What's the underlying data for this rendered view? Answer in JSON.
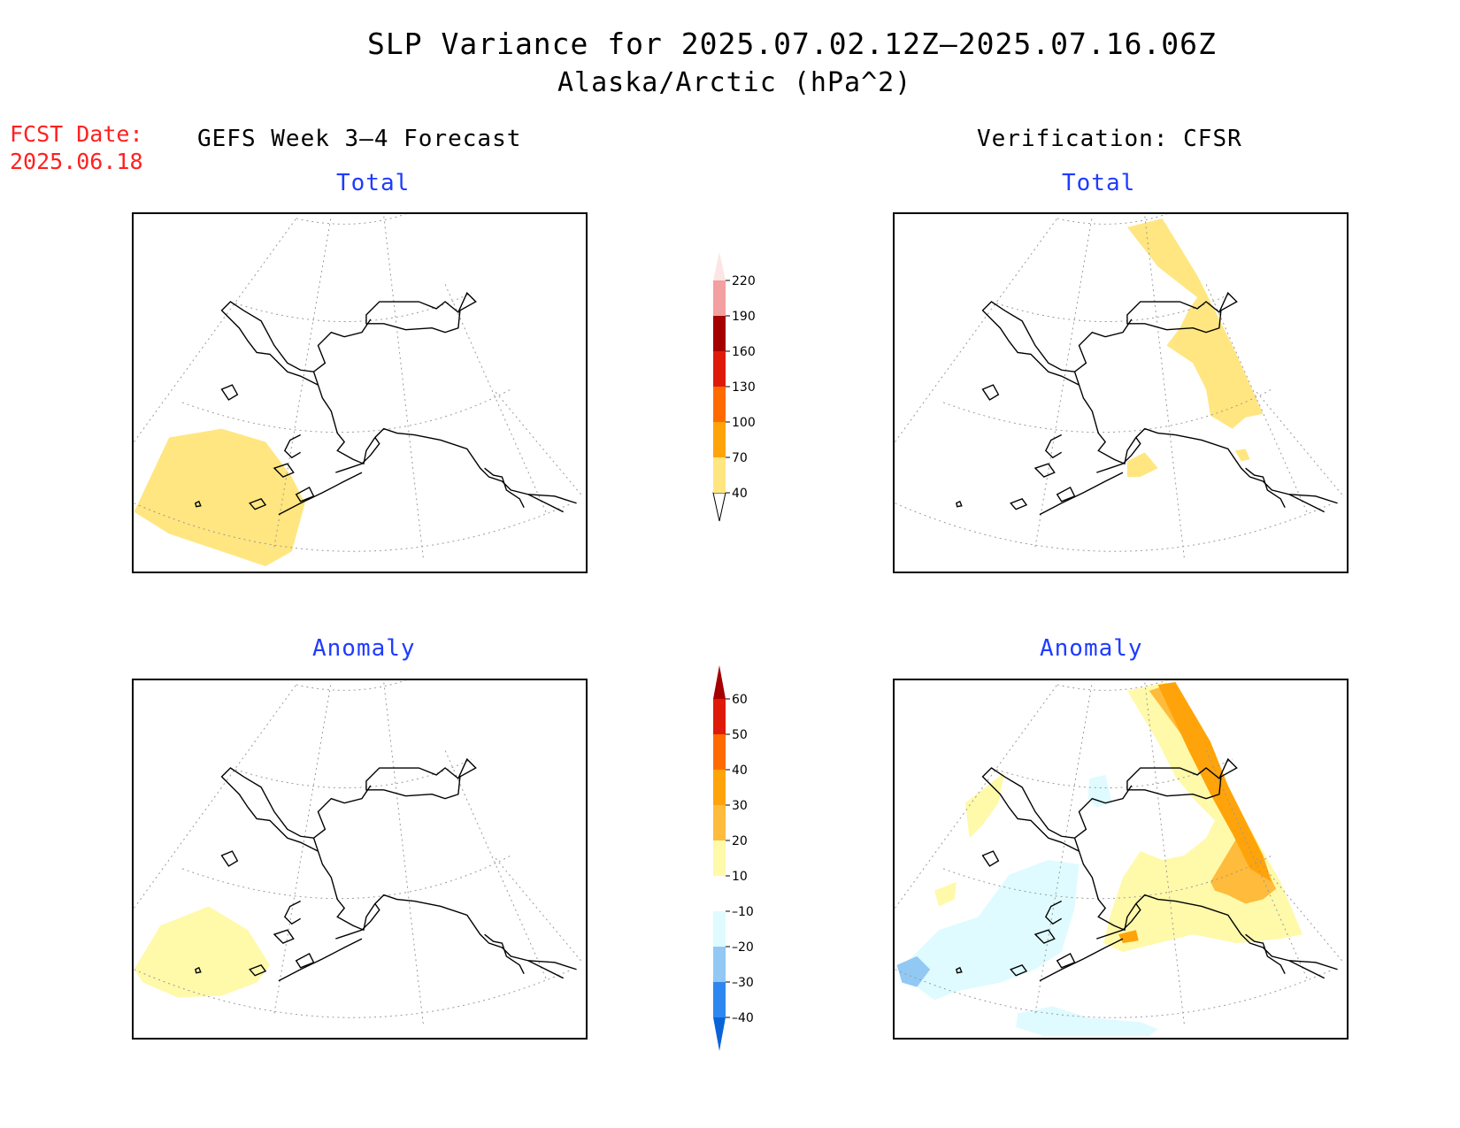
{
  "header": {
    "title": "SLP Variance for 2025.07.02.12Z—2025.07.16.06Z",
    "subtitle": "Alaska/Arctic (hPa^2)"
  },
  "fcst": {
    "label": "FCST Date:",
    "date": "2025.06.18"
  },
  "columns": {
    "left": "GEFS Week 3—4 Forecast",
    "right": "Verification: CFSR"
  },
  "panels": {
    "total_label": "Total",
    "anomaly_label": "Anomaly"
  },
  "colorbar_total": {
    "levels": [
      "40",
      "70",
      "100",
      "130",
      "160",
      "190",
      "220"
    ],
    "colors": [
      "#ffffff",
      "#ffe680",
      "#ffa30a",
      "#ff6a00",
      "#e01a0a",
      "#a50000",
      "#f2a0a0",
      "#fde5e5"
    ]
  },
  "colorbar_anomaly": {
    "levels": [
      "–40",
      "–30",
      "–20",
      "–10",
      "10",
      "20",
      "30",
      "40",
      "50",
      "60"
    ],
    "colors": [
      "#0a64d8",
      "#2e86f0",
      "#92c8f4",
      "#dffbff",
      "#ffffff",
      "#fff9aa",
      "#ffbb3c",
      "#ffa30a",
      "#ff6a00",
      "#e01a0a",
      "#a50000"
    ]
  },
  "map_colors": {
    "total_shade": "#ffe680",
    "anom_pos1": "#fff9aa",
    "anom_pos2": "#ffbb3c",
    "anom_pos3": "#ffa30a",
    "anom_neg1": "#dffbff",
    "anom_neg2": "#92c8f4"
  }
}
